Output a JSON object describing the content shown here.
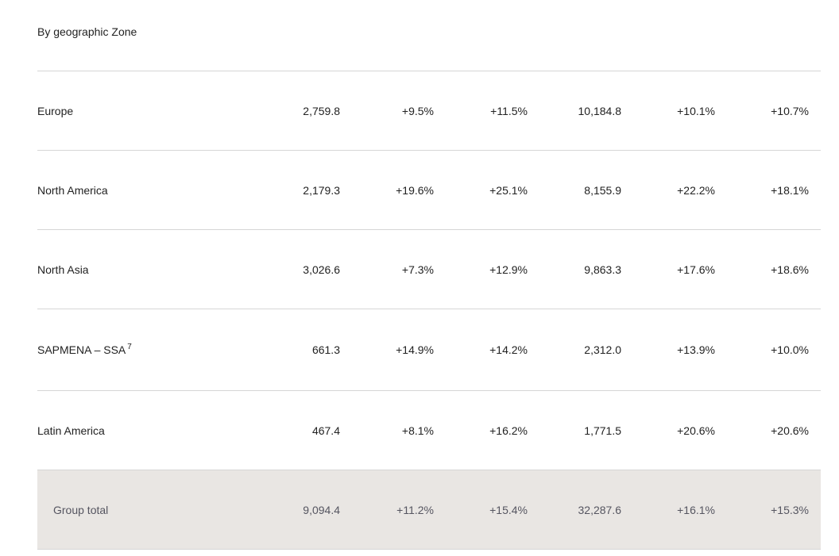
{
  "heading": "By geographic Zone",
  "rows": [
    {
      "label": "Europe",
      "note": "",
      "values": [
        "2,759.8",
        "+9.5%",
        "+11.5%",
        "10,184.8",
        "+10.1%",
        "+10.7%"
      ]
    },
    {
      "label": "North America",
      "note": "",
      "values": [
        "2,179.3",
        "+19.6%",
        "+25.1%",
        "8,155.9",
        "+22.2%",
        "+18.1%"
      ]
    },
    {
      "label": "North Asia",
      "note": "",
      "values": [
        "3,026.6",
        "+7.3%",
        "+12.9%",
        "9,863.3",
        "+17.6%",
        "+18.6%"
      ]
    },
    {
      "label": "SAPMENA – SSA",
      "note": "7",
      "values": [
        "661.3",
        "+14.9%",
        "+14.2%",
        "2,312.0",
        "+13.9%",
        "+10.0%"
      ]
    },
    {
      "label": "Latin America",
      "note": "",
      "values": [
        "467.4",
        "+8.1%",
        "+16.2%",
        "1,771.5",
        "+20.6%",
        "+20.6%"
      ]
    }
  ],
  "total": {
    "label": "Group total",
    "values": [
      "9,094.4",
      "+11.2%",
      "+15.4%",
      "32,287.6",
      "+16.1%",
      "+15.3%"
    ]
  }
}
